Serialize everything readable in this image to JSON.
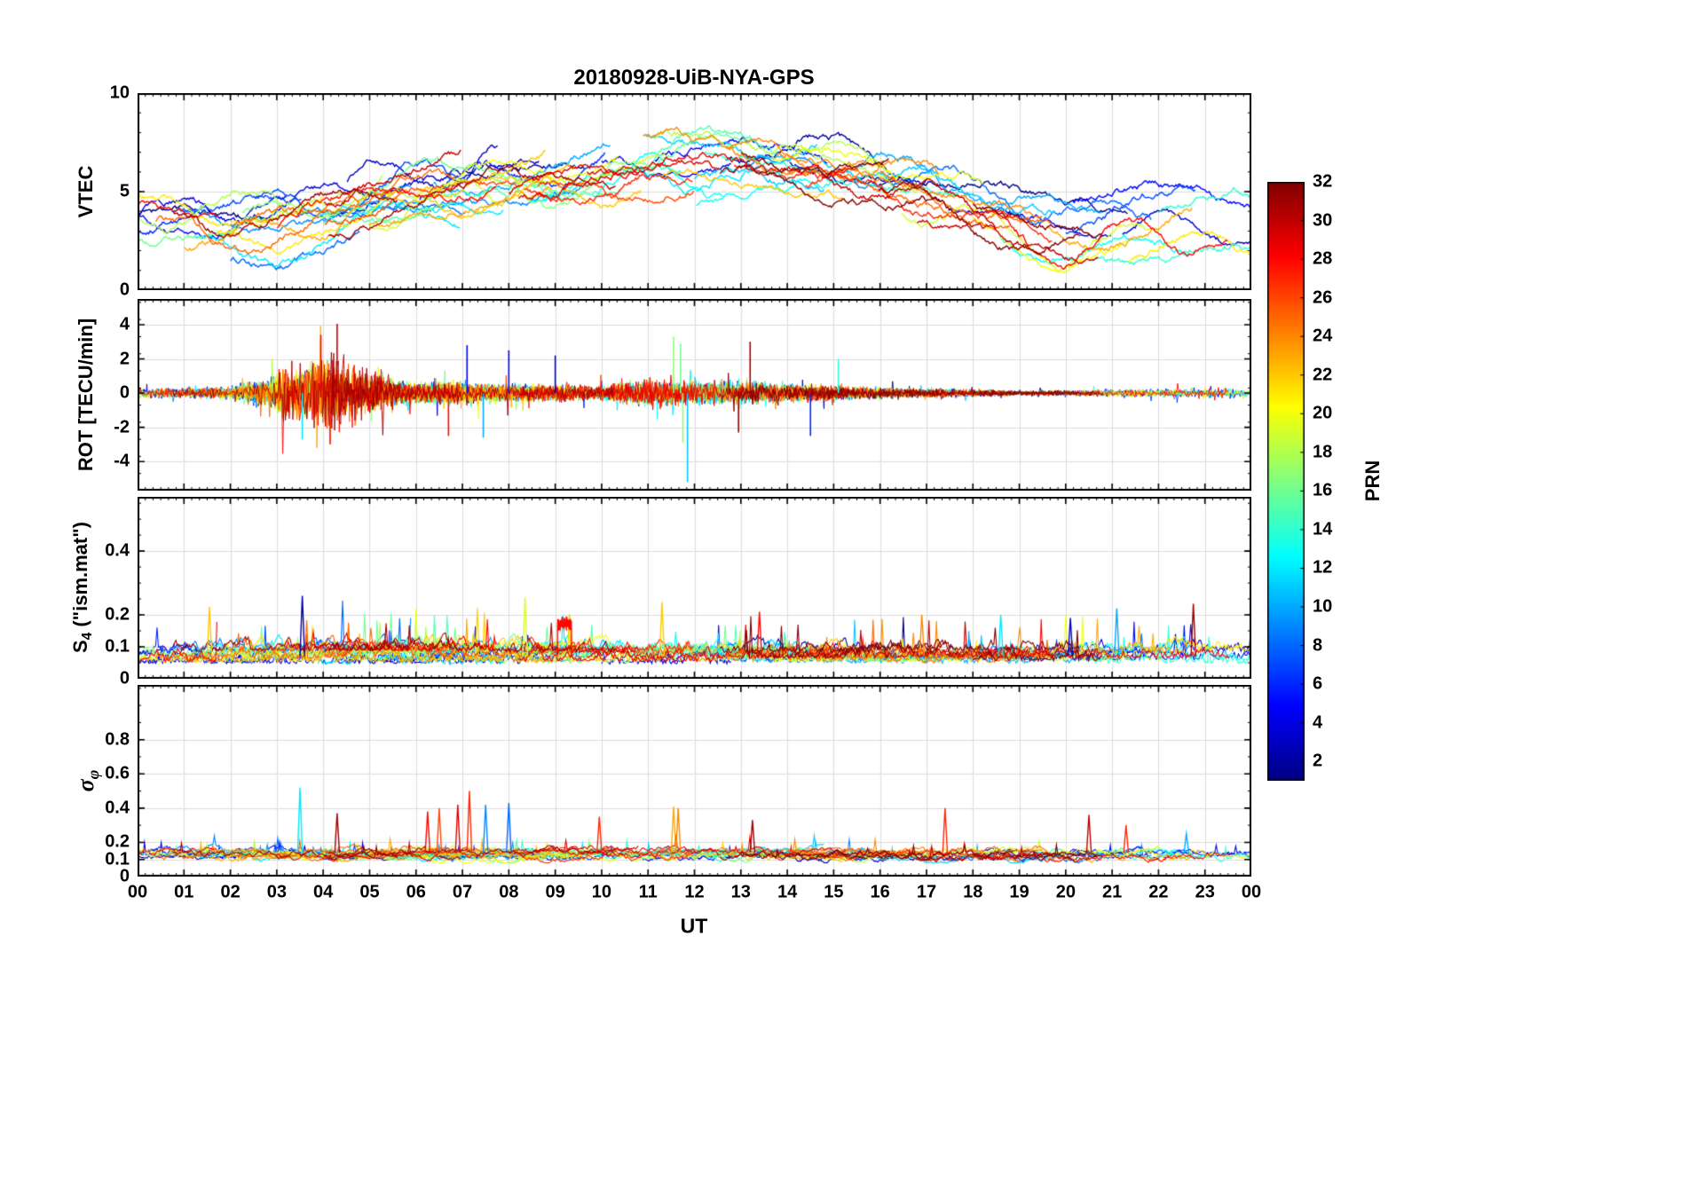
{
  "figure": {
    "title": "20180928-UiB-NYA-GPS",
    "xlabel": "UT",
    "background": "#ffffff",
    "axis_color": "#000000",
    "grid_color": "#dcdcdc"
  },
  "x_axis": {
    "range_hours": [
      0,
      24
    ],
    "tick_labels": [
      "00",
      "01",
      "02",
      "03",
      "04",
      "05",
      "06",
      "07",
      "08",
      "09",
      "10",
      "11",
      "12",
      "13",
      "14",
      "15",
      "16",
      "17",
      "18",
      "19",
      "20",
      "21",
      "22",
      "23",
      "00"
    ]
  },
  "colorbar": {
    "label": "PRN",
    "colormap": "jet",
    "range": [
      1,
      32
    ],
    "tick_labels": [
      "2",
      "4",
      "6",
      "8",
      "10",
      "12",
      "14",
      "16",
      "18",
      "20",
      "22",
      "24",
      "26",
      "28",
      "30",
      "32"
    ]
  },
  "chart_data": [
    {
      "type": "line",
      "name": "vtec",
      "ylabel": "VTEC",
      "units": "TECU",
      "ylim": [
        0,
        10
      ],
      "yticks": [
        0,
        5,
        10
      ],
      "ytick_labels": [
        "0",
        "5",
        "10"
      ],
      "n_prn_series": 32,
      "hourly_mean": [
        3.2,
        3.1,
        3.0,
        3.3,
        3.8,
        4.3,
        4.8,
        5.2,
        5.5,
        5.8,
        6.0,
        6.1,
        6.2,
        6.2,
        6.0,
        5.7,
        5.3,
        4.8,
        4.1,
        3.3,
        2.7,
        2.9,
        3.2,
        3.4,
        3.2
      ],
      "spread": 1.3
    },
    {
      "type": "line",
      "name": "rot",
      "ylabel": "ROT [TECU/min]",
      "ylim": [
        -5.7,
        5.5
      ],
      "yticks": [
        -4,
        -2,
        0,
        2,
        4
      ],
      "ytick_labels": [
        "-4",
        "-2",
        "0",
        "2",
        "4"
      ],
      "hourly_amplitude": [
        0.25,
        0.28,
        0.35,
        0.9,
        1.35,
        0.8,
        0.55,
        0.6,
        0.5,
        0.45,
        0.4,
        0.75,
        0.65,
        0.6,
        0.5,
        0.4,
        0.3,
        0.25,
        0.2,
        0.15,
        0.15,
        0.18,
        0.22,
        0.28,
        0.25
      ],
      "spikes": [
        {
          "t": 2.9,
          "value": 2.0,
          "prn": 18
        },
        {
          "t": 3.55,
          "value": -2.7,
          "prn": 12
        },
        {
          "t": 3.95,
          "value": 3.4,
          "prn": 28
        },
        {
          "t": 4.15,
          "value": -3.0,
          "prn": 27
        },
        {
          "t": 4.3,
          "value": 4.05,
          "prn": 30
        },
        {
          "t": 6.7,
          "value": -2.5,
          "prn": 28
        },
        {
          "t": 7.1,
          "value": 2.8,
          "prn": 5
        },
        {
          "t": 7.45,
          "value": -2.6,
          "prn": 10
        },
        {
          "t": 8.0,
          "value": 2.5,
          "prn": 5
        },
        {
          "t": 9.0,
          "value": 2.2,
          "prn": 4
        },
        {
          "t": 11.55,
          "value": 3.3,
          "prn": 17
        },
        {
          "t": 11.7,
          "value": 2.9,
          "prn": 16
        },
        {
          "t": 11.75,
          "value": -2.9,
          "prn": 17
        },
        {
          "t": 11.85,
          "value": -5.2,
          "prn": 11
        },
        {
          "t": 12.95,
          "value": -2.3,
          "prn": 31
        },
        {
          "t": 13.2,
          "value": 3.0,
          "prn": 31
        },
        {
          "t": 14.5,
          "value": -2.5,
          "prn": 6
        },
        {
          "t": 15.1,
          "value": 2.0,
          "prn": 14
        }
      ]
    },
    {
      "type": "line",
      "name": "s4",
      "ylabel_main": "S",
      "ylabel_sub": "4",
      "ylabel_rest": " (\"ism.mat\")",
      "ylim": [
        0,
        0.57
      ],
      "yticks": [
        0,
        0.1,
        0.2,
        0.4
      ],
      "ytick_labels": [
        "0",
        "0.1",
        "0.2",
        "0.4"
      ],
      "baseline": 0.07,
      "plateau": {
        "t_start": 9.05,
        "t_end": 9.35,
        "value": 0.17,
        "prn": 28
      },
      "spikes": [
        {
          "t": 1.55,
          "value": 0.225,
          "prn": 22
        },
        {
          "t": 3.55,
          "value": 0.26,
          "prn": 2
        },
        {
          "t": 8.35,
          "value": 0.255,
          "prn": 19
        },
        {
          "t": 11.3,
          "value": 0.24,
          "prn": 22
        },
        {
          "t": 13.4,
          "value": 0.21,
          "prn": 28
        },
        {
          "t": 16.9,
          "value": 0.2,
          "prn": 24
        },
        {
          "t": 18.6,
          "value": 0.2,
          "prn": 12
        },
        {
          "t": 20.1,
          "value": 0.19,
          "prn": 3
        },
        {
          "t": 21.1,
          "value": 0.22,
          "prn": 10
        },
        {
          "t": 22.75,
          "value": 0.235,
          "prn": 31
        }
      ]
    },
    {
      "type": "line",
      "name": "sigma-phi",
      "ylabel_sym": "σ",
      "ylabel_sub": "φ",
      "ylim": [
        0,
        1.12
      ],
      "yticks": [
        0,
        0.1,
        0.2,
        0.4,
        0.6,
        0.8
      ],
      "ytick_labels": [
        "0",
        "0.1",
        "0.2",
        "0.4",
        "0.6",
        "0.8"
      ],
      "baseline": 0.13,
      "spikes": [
        {
          "t": 3.5,
          "value": 0.52,
          "prn": 12
        },
        {
          "t": 4.3,
          "value": 0.37,
          "prn": 31
        },
        {
          "t": 6.25,
          "value": 0.38,
          "prn": 28
        },
        {
          "t": 6.5,
          "value": 0.4,
          "prn": 26
        },
        {
          "t": 6.9,
          "value": 0.42,
          "prn": 29
        },
        {
          "t": 7.15,
          "value": 0.5,
          "prn": 27
        },
        {
          "t": 7.5,
          "value": 0.42,
          "prn": 9
        },
        {
          "t": 8.0,
          "value": 0.43,
          "prn": 8
        },
        {
          "t": 9.95,
          "value": 0.35,
          "prn": 27
        },
        {
          "t": 11.55,
          "value": 0.41,
          "prn": 23
        },
        {
          "t": 11.65,
          "value": 0.4,
          "prn": 24
        },
        {
          "t": 13.25,
          "value": 0.33,
          "prn": 31
        },
        {
          "t": 17.4,
          "value": 0.4,
          "prn": 27
        },
        {
          "t": 20.5,
          "value": 0.36,
          "prn": 30
        },
        {
          "t": 21.3,
          "value": 0.3,
          "prn": 27
        },
        {
          "t": 22.6,
          "value": 0.25,
          "prn": 10
        }
      ]
    }
  ]
}
